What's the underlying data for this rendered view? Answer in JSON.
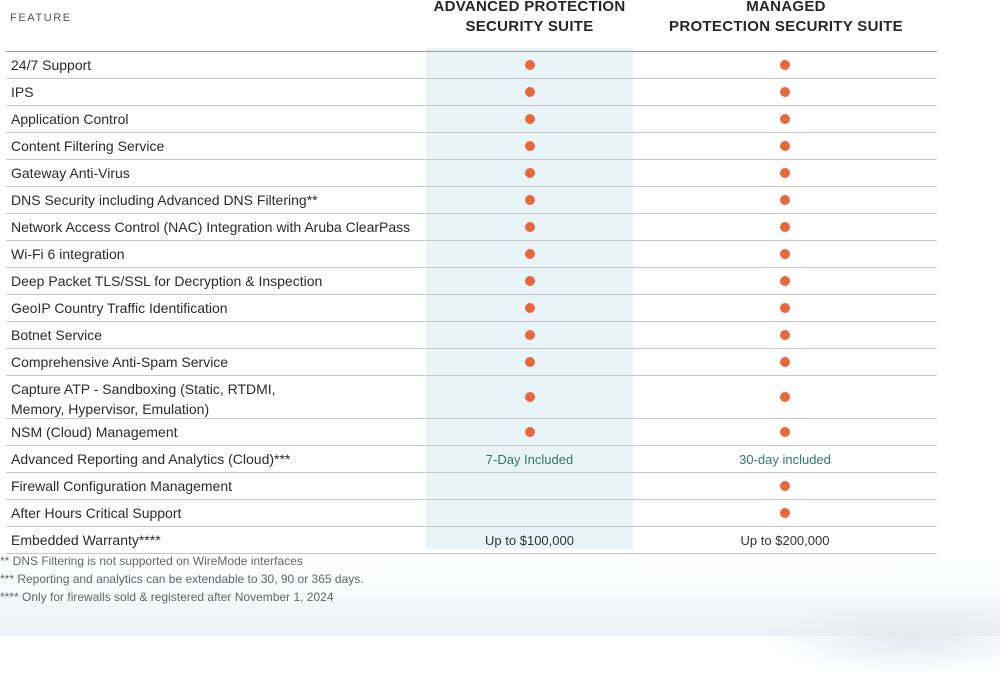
{
  "header": {
    "feature_label": "FEATURE",
    "col1_line1": "ADVANCED PROTECTION",
    "col1_line2": "SECURITY SUITE",
    "col2_line1": "MANAGED",
    "col2_line2": "PROTECTION SECURITY SUITE"
  },
  "colors": {
    "dot": "#e8683d",
    "highlight_column": "#e9f4f8",
    "included_text": "#2f7a6c"
  },
  "rows": [
    {
      "feature": "24/7 Support",
      "c1": "dot",
      "c2": "dot"
    },
    {
      "feature": "IPS",
      "c1": "dot",
      "c2": "dot"
    },
    {
      "feature": "Application Control",
      "c1": "dot",
      "c2": "dot"
    },
    {
      "feature": "Content Filtering Service",
      "c1": "dot",
      "c2": "dot"
    },
    {
      "feature": "Gateway Anti-Virus",
      "c1": "dot",
      "c2": "dot"
    },
    {
      "feature": "DNS Security including Advanced DNS Filtering**",
      "c1": "dot",
      "c2": "dot"
    },
    {
      "feature": "Network Access Control (NAC) Integration with Aruba ClearPass",
      "c1": "dot",
      "c2": "dot"
    },
    {
      "feature": "Wi-Fi 6 integration",
      "c1": "dot",
      "c2": "dot"
    },
    {
      "feature": "Deep Packet TLS/SSL for Decryption & Inspection",
      "c1": "dot",
      "c2": "dot"
    },
    {
      "feature": "GeoIP Country Traffic Identification",
      "c1": "dot",
      "c2": "dot"
    },
    {
      "feature": "Botnet Service",
      "c1": "dot",
      "c2": "dot"
    },
    {
      "feature": "Comprehensive Anti-Spam Service",
      "c1": "dot",
      "c2": "dot"
    },
    {
      "feature": "Capture ATP -  Sandboxing (Static, RTDMI, Memory, Hypervisor, Emulation)",
      "c1": "dot",
      "c2": "dot"
    },
    {
      "feature": "NSM (Cloud) Management",
      "c1": "dot",
      "c2": "dot"
    },
    {
      "feature": "Advanced Reporting and Analytics (Cloud)***",
      "c1": "7-Day Included",
      "c2": "30-day included"
    },
    {
      "feature": "Firewall Configuration Management",
      "c1": "",
      "c2": "dot"
    },
    {
      "feature": "After Hours Critical Support",
      "c1": "",
      "c2": "dot"
    },
    {
      "feature": "Embedded Warranty****",
      "c1": "Up to $100,000",
      "c2": "Up to $200,000"
    }
  ],
  "footnotes": [
    "** DNS Filtering is not supported on WireMode interfaces",
    "*** Reporting and analytics can be extendable to 30, 90 or 365 days.",
    "**** Only for firewalls sold & registered after November 1, 2024"
  ]
}
